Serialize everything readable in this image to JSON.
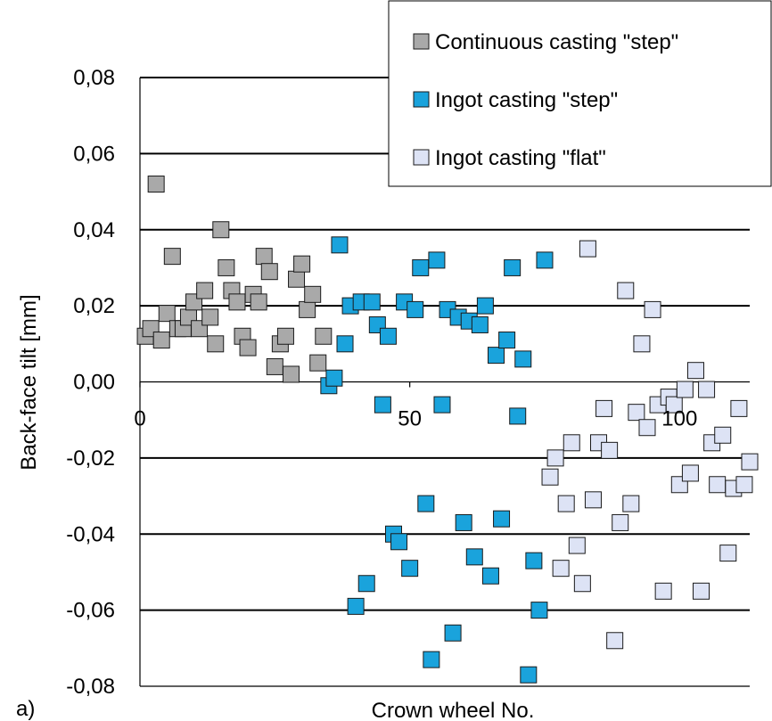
{
  "panel_label": "a)",
  "chart_data": {
    "type": "scatter",
    "title": "",
    "xlabel": "Crown wheel No.",
    "ylabel": "Back-face tilt [mm]",
    "xlim": [
      0,
      113
    ],
    "ylim": [
      -0.08,
      0.08
    ],
    "x_ticks": [
      {
        "value": 0,
        "label": "0"
      },
      {
        "value": 50,
        "label": "50"
      },
      {
        "value": 100,
        "label": "100"
      }
    ],
    "y_ticks": [
      {
        "value": 0.08,
        "label": "0,08"
      },
      {
        "value": 0.06,
        "label": "0,06"
      },
      {
        "value": 0.04,
        "label": "0,04"
      },
      {
        "value": 0.02,
        "label": "0,02"
      },
      {
        "value": 0.0,
        "label": "0,00"
      },
      {
        "value": -0.02,
        "label": "-0,02"
      },
      {
        "value": -0.04,
        "label": "-0,04"
      },
      {
        "value": -0.06,
        "label": "-0,06"
      },
      {
        "value": -0.08,
        "label": "-0,08"
      }
    ],
    "grid": "horizontal",
    "legend_position": "top-right",
    "series": [
      {
        "name": "Continuous casting \"step\"",
        "color": "#a9a9a9",
        "points": [
          [
            1,
            0.012
          ],
          [
            2,
            0.014
          ],
          [
            3,
            0.052
          ],
          [
            4,
            0.011
          ],
          [
            5,
            0.018
          ],
          [
            6,
            0.033
          ],
          [
            7,
            0.014
          ],
          [
            8,
            0.014
          ],
          [
            9,
            0.017
          ],
          [
            10,
            0.021
          ],
          [
            11,
            0.014
          ],
          [
            12,
            0.024
          ],
          [
            13,
            0.017
          ],
          [
            14,
            0.01
          ],
          [
            15,
            0.04
          ],
          [
            16,
            0.03
          ],
          [
            17,
            0.024
          ],
          [
            18,
            0.021
          ],
          [
            19,
            0.012
          ],
          [
            20,
            0.009
          ],
          [
            21,
            0.023
          ],
          [
            22,
            0.021
          ],
          [
            23,
            0.033
          ],
          [
            24,
            0.029
          ],
          [
            25,
            0.004
          ],
          [
            26,
            0.01
          ],
          [
            27,
            0.012
          ],
          [
            28,
            0.002
          ],
          [
            29,
            0.027
          ],
          [
            30,
            0.031
          ],
          [
            31,
            0.019
          ],
          [
            32,
            0.023
          ],
          [
            33,
            0.005
          ],
          [
            34,
            0.012
          ]
        ]
      },
      {
        "name": "Ingot casting \"step\"",
        "color": "#1aa3dc",
        "points": [
          [
            35,
            -0.001
          ],
          [
            36,
            0.001
          ],
          [
            37,
            0.036
          ],
          [
            38,
            0.01
          ],
          [
            39,
            0.02
          ],
          [
            40,
            -0.059
          ],
          [
            41,
            0.021
          ],
          [
            42,
            -0.053
          ],
          [
            43,
            0.021
          ],
          [
            44,
            0.015
          ],
          [
            45,
            -0.006
          ],
          [
            46,
            0.012
          ],
          [
            47,
            -0.04
          ],
          [
            48,
            -0.042
          ],
          [
            49,
            0.021
          ],
          [
            50,
            -0.049
          ],
          [
            51,
            0.019
          ],
          [
            52,
            0.03
          ],
          [
            53,
            -0.032
          ],
          [
            54,
            -0.073
          ],
          [
            55,
            0.032
          ],
          [
            56,
            -0.006
          ],
          [
            57,
            0.019
          ],
          [
            58,
            -0.066
          ],
          [
            59,
            0.017
          ],
          [
            60,
            -0.037
          ],
          [
            61,
            0.016
          ],
          [
            62,
            -0.046
          ],
          [
            63,
            0.015
          ],
          [
            64,
            0.02
          ],
          [
            65,
            -0.051
          ],
          [
            66,
            0.007
          ],
          [
            67,
            -0.036
          ],
          [
            68,
            0.011
          ],
          [
            69,
            0.03
          ],
          [
            70,
            -0.009
          ],
          [
            71,
            0.006
          ],
          [
            72,
            -0.077
          ],
          [
            73,
            -0.047
          ],
          [
            74,
            -0.06
          ],
          [
            75,
            0.032
          ]
        ]
      },
      {
        "name": "Ingot casting \"flat\"",
        "color": "#dde3f5",
        "points": [
          [
            76,
            -0.025
          ],
          [
            77,
            -0.02
          ],
          [
            78,
            -0.049
          ],
          [
            79,
            -0.032
          ],
          [
            80,
            -0.016
          ],
          [
            81,
            -0.043
          ],
          [
            82,
            -0.053
          ],
          [
            83,
            0.035
          ],
          [
            84,
            -0.031
          ],
          [
            85,
            -0.016
          ],
          [
            86,
            -0.007
          ],
          [
            87,
            -0.018
          ],
          [
            88,
            -0.068
          ],
          [
            89,
            -0.037
          ],
          [
            90,
            0.024
          ],
          [
            91,
            -0.032
          ],
          [
            92,
            -0.008
          ],
          [
            93,
            0.01
          ],
          [
            94,
            -0.012
          ],
          [
            95,
            0.019
          ],
          [
            96,
            -0.006
          ],
          [
            97,
            -0.055
          ],
          [
            98,
            -0.004
          ],
          [
            99,
            -0.006
          ],
          [
            100,
            -0.027
          ],
          [
            101,
            -0.002
          ],
          [
            102,
            -0.024
          ],
          [
            103,
            0.003
          ],
          [
            104,
            -0.055
          ],
          [
            105,
            -0.002
          ],
          [
            106,
            -0.016
          ],
          [
            107,
            -0.027
          ],
          [
            108,
            -0.014
          ],
          [
            109,
            -0.045
          ],
          [
            110,
            -0.028
          ],
          [
            111,
            -0.007
          ],
          [
            112,
            -0.027
          ],
          [
            113,
            -0.021
          ]
        ]
      }
    ]
  }
}
